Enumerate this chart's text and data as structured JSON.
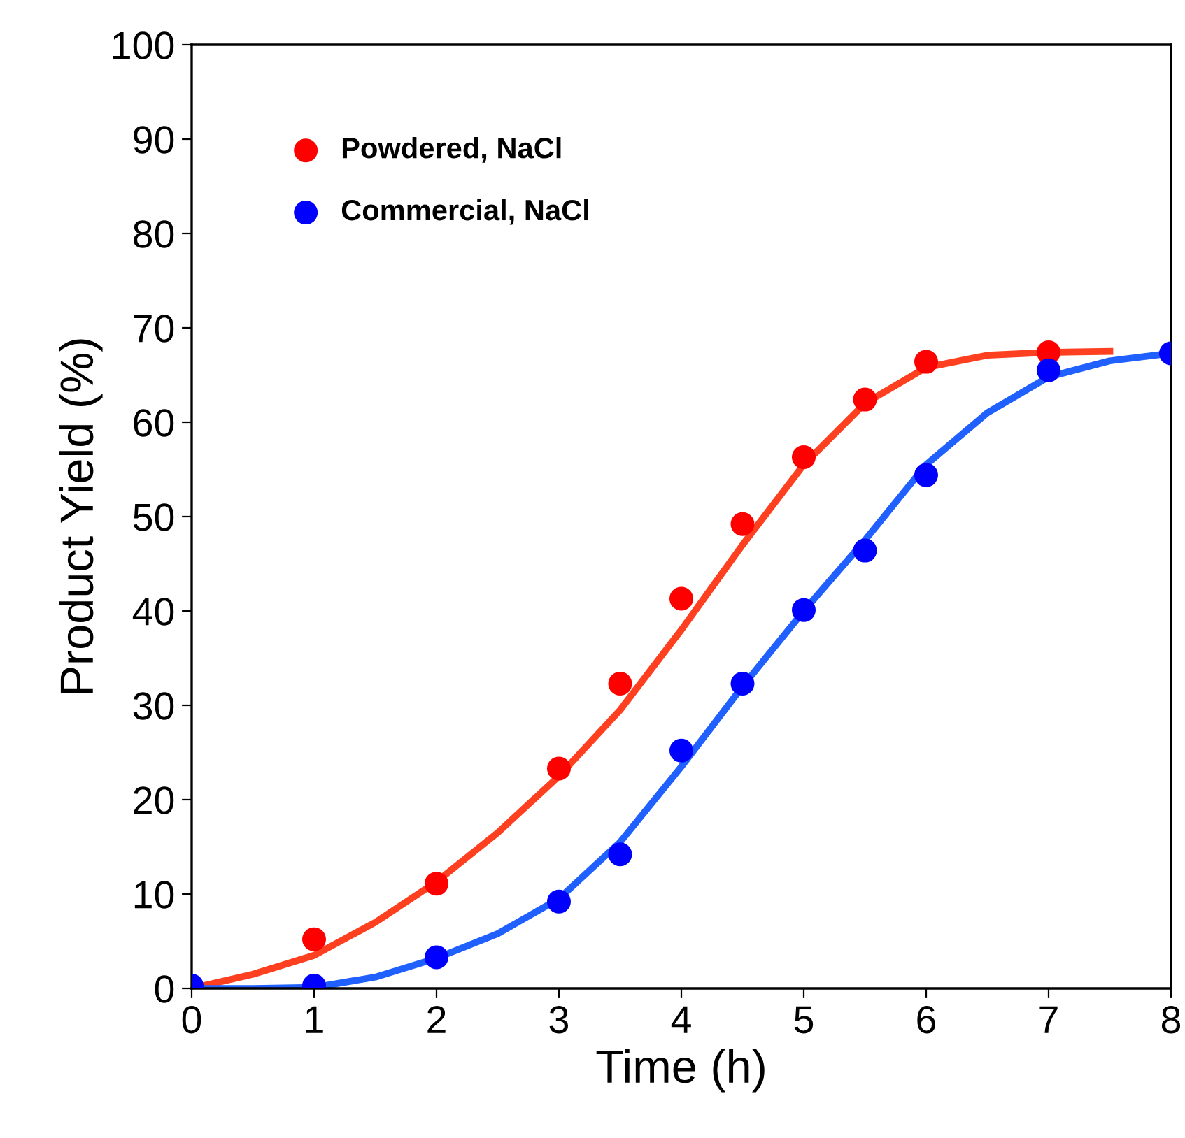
{
  "chart_data": {
    "type": "scatter",
    "xlabel": "Time (h)",
    "ylabel": "Product Yield (%)",
    "xlim": [
      0,
      8
    ],
    "ylim": [
      0,
      100
    ],
    "xticks": [
      0,
      1,
      2,
      3,
      4,
      5,
      6,
      7,
      8
    ],
    "yticks": [
      0,
      10,
      20,
      30,
      40,
      50,
      60,
      70,
      80,
      90,
      100
    ],
    "grid": false,
    "legend": "top left",
    "series": [
      {
        "name": "Powdered, NaCl",
        "color": "#ff0000",
        "marker": "circle",
        "x": [
          1,
          2,
          3,
          3.5,
          4,
          4.5,
          5,
          5.5,
          6,
          7
        ],
        "values": [
          5.2,
          11.1,
          23.3,
          32.3,
          41.3,
          49.2,
          56.3,
          62.4,
          66.4,
          67.4
        ]
      },
      {
        "name": "Commercial, NaCl",
        "color": "#0000ff",
        "marker": "circle",
        "x": [
          0,
          1,
          2,
          3,
          3.5,
          4,
          4.5,
          5,
          5.5,
          6,
          7,
          8
        ],
        "values": [
          0.3,
          0.3,
          3.3,
          9.2,
          14.2,
          25.2,
          32.3,
          40.1,
          46.4,
          54.4,
          65.5,
          67.3
        ]
      },
      {
        "color": "#ff4020",
        "type": "line",
        "marker": "none",
        "x": [
          0,
          0.5,
          1,
          1.5,
          2,
          2.5,
          3,
          3.5,
          4,
          4.5,
          5,
          5.5,
          6,
          6.5,
          7,
          7.5
        ],
        "values": [
          0,
          1.5,
          3.5,
          7,
          11.3,
          16.5,
          22.5,
          29.5,
          38,
          47,
          55.5,
          62,
          65.8,
          67.1,
          67.4,
          67.5
        ]
      },
      {
        "color": "#2060ff",
        "type": "line",
        "marker": "none",
        "x": [
          0,
          0.5,
          1,
          1.5,
          2,
          2.5,
          3,
          3.5,
          4,
          4.5,
          5,
          5.5,
          6,
          6.5,
          7,
          7.5,
          8
        ],
        "values": [
          0,
          0,
          0.1,
          1.2,
          3.2,
          5.8,
          9.5,
          15.5,
          23.5,
          32,
          40,
          47.5,
          55.5,
          61,
          64.8,
          66.5,
          67.3
        ]
      }
    ]
  }
}
